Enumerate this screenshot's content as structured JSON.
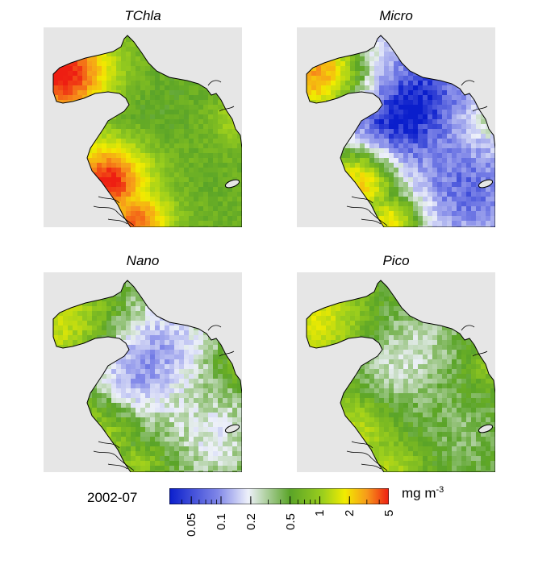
{
  "panels": [
    {
      "title": "TChla",
      "mode": "tchla"
    },
    {
      "title": "Micro",
      "mode": "micro"
    },
    {
      "title": "Nano",
      "mode": "nano"
    },
    {
      "title": "Pico",
      "mode": "pico"
    }
  ],
  "date": "2002-07",
  "colorbar": {
    "unit_base": "mg m",
    "unit_exp": "-3",
    "scale": "log",
    "range": [
      0.03,
      5
    ],
    "ticks": [
      {
        "label": "0.05",
        "value": 0.05
      },
      {
        "label": "0.1",
        "value": 0.1
      },
      {
        "label": "0.2",
        "value": 0.2
      },
      {
        "label": "0.5",
        "value": 0.5
      },
      {
        "label": "1",
        "value": 1
      },
      {
        "label": "2",
        "value": 2
      },
      {
        "label": "5",
        "value": 5
      }
    ],
    "colors": [
      "#0a1ecc",
      "#7f86e8",
      "#eef1fa",
      "#5aa428",
      "#9ccf1d",
      "#f2ec00",
      "#f79a1a",
      "#ee1e12"
    ]
  }
}
